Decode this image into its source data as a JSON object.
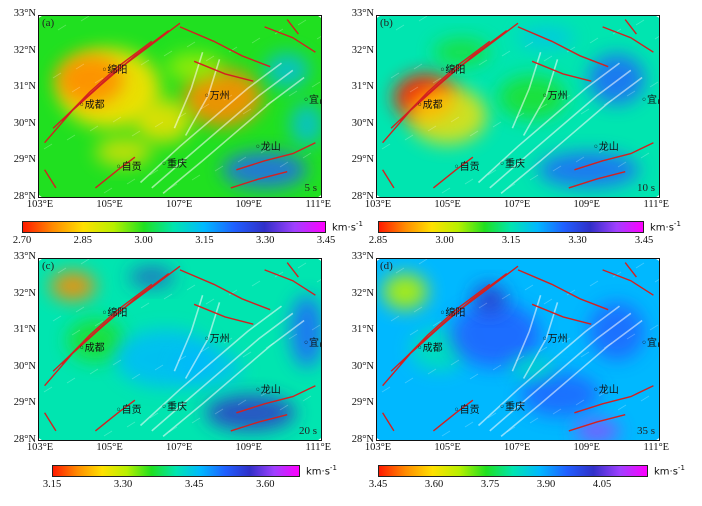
{
  "colors": {
    "fault": "#d32020",
    "frame": "#111111",
    "ramp": [
      "#ff1a00",
      "#ff8c00",
      "#ffe000",
      "#b8f000",
      "#20e020",
      "#00e5b0",
      "#00b8ff",
      "#2060ff",
      "#3030c8",
      "#a040ff",
      "#ff00ff"
    ]
  },
  "lat_labels": [
    "33°N",
    "32°N",
    "31°N",
    "30°N",
    "29°N",
    "28°N"
  ],
  "lon_labels": [
    "103°E",
    "105°E",
    "107°E",
    "109°E",
    "111°E"
  ],
  "unit": "km·s",
  "unit_exp": "-1",
  "panels": [
    {
      "label": "(a)",
      "period": "5 s",
      "ticks": [
        "2.70",
        "2.85",
        "3.00",
        "3.15",
        "3.30",
        "3.45"
      ],
      "cities": [
        {
          "name": "绵阳",
          "icon": "circle-marker"
        },
        {
          "name": "成都",
          "icon": "circle-marker"
        },
        {
          "name": "重庆",
          "icon": "circle-marker"
        },
        {
          "name": "自贡",
          "icon": "circle-marker"
        },
        {
          "name": "万州",
          "icon": "circle-marker"
        },
        {
          "name": "龙山",
          "icon": "circle-marker"
        },
        {
          "name": "宜昌",
          "icon": "circle-marker"
        }
      ]
    },
    {
      "label": "(b)",
      "period": "10 s",
      "ticks": [
        "2.85",
        "3.00",
        "3.15",
        "3.30",
        "3.45"
      ],
      "cities": [
        {
          "name": "绵阳",
          "icon": "circle-marker"
        },
        {
          "name": "成都",
          "icon": "circle-marker"
        },
        {
          "name": "重庆",
          "icon": "circle-marker"
        },
        {
          "name": "自贡",
          "icon": "circle-marker"
        },
        {
          "name": "万州",
          "icon": "circle-marker"
        },
        {
          "name": "龙山",
          "icon": "circle-marker"
        },
        {
          "name": "宜昌",
          "icon": "circle-marker"
        }
      ]
    },
    {
      "label": "(c)",
      "period": "20 s",
      "ticks": [
        "3.15",
        "3.30",
        "3.45",
        "3.60"
      ],
      "cities": [
        {
          "name": "绵阳",
          "icon": "circle-marker"
        },
        {
          "name": "成都",
          "icon": "circle-marker"
        },
        {
          "name": "重庆",
          "icon": "circle-marker"
        },
        {
          "name": "自贡",
          "icon": "circle-marker"
        },
        {
          "name": "万州",
          "icon": "circle-marker"
        },
        {
          "name": "龙山",
          "icon": "circle-marker"
        },
        {
          "name": "宜昌",
          "icon": "circle-marker"
        }
      ]
    },
    {
      "label": "(d)",
      "period": "35 s",
      "ticks": [
        "3.45",
        "3.60",
        "3.75",
        "3.90",
        "4.05"
      ],
      "cities": [
        {
          "name": "绵阳",
          "icon": "circle-marker"
        },
        {
          "name": "成都",
          "icon": "circle-marker"
        },
        {
          "name": "重庆",
          "icon": "circle-marker"
        },
        {
          "name": "自贡",
          "icon": "circle-marker"
        },
        {
          "name": "万州",
          "icon": "circle-marker"
        },
        {
          "name": "龙山",
          "icon": "circle-marker"
        },
        {
          "name": "宜昌",
          "icon": "circle-marker"
        }
      ]
    }
  ]
}
